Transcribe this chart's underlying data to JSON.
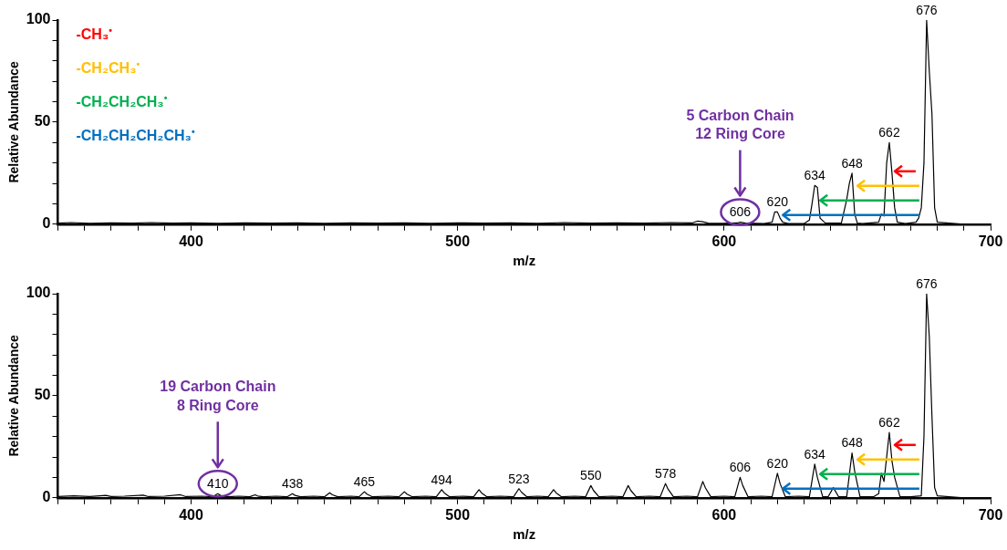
{
  "chart_data": [
    {
      "type": "line",
      "xlabel": "m/z",
      "ylabel": "Relative Abundance",
      "xlim": [
        350,
        700
      ],
      "ylim": [
        0,
        100
      ],
      "xticks": [
        {
          "value": 350,
          "label": null
        },
        {
          "value": 360,
          "label": null
        },
        {
          "value": 370,
          "label": null
        },
        {
          "value": 380,
          "label": null
        },
        {
          "value": 390,
          "label": null
        },
        400,
        {
          "value": 410,
          "label": null
        },
        {
          "value": 420,
          "label": null
        },
        {
          "value": 430,
          "label": null
        },
        {
          "value": 440,
          "label": null
        },
        {
          "value": 450,
          "label": null
        },
        {
          "value": 460,
          "label": null
        },
        {
          "value": 470,
          "label": null
        },
        {
          "value": 480,
          "label": null
        },
        {
          "value": 490,
          "label": null
        },
        500,
        {
          "value": 510,
          "label": null
        },
        {
          "value": 520,
          "label": null
        },
        {
          "value": 530,
          "label": null
        },
        {
          "value": 540,
          "label": null
        },
        {
          "value": 550,
          "label": null
        },
        {
          "value": 560,
          "label": null
        },
        {
          "value": 570,
          "label": null
        },
        {
          "value": 580,
          "label": null
        },
        {
          "value": 590,
          "label": null
        },
        600,
        {
          "value": 610,
          "label": null
        },
        {
          "value": 620,
          "label": null
        },
        {
          "value": 630,
          "label": null
        },
        {
          "value": 640,
          "label": null
        },
        {
          "value": 650,
          "label": null
        },
        {
          "value": 660,
          "label": null
        },
        {
          "value": 670,
          "label": null
        },
        {
          "value": 680,
          "label": null
        },
        {
          "value": 690,
          "label": null
        },
        700
      ],
      "yticks": [
        0,
        {
          "value": 10,
          "label": null
        },
        {
          "value": 20,
          "label": null
        },
        {
          "value": 30,
          "label": null
        },
        {
          "value": 40,
          "label": null
        },
        50,
        {
          "value": 60,
          "label": null
        },
        {
          "value": 70,
          "label": null
        },
        {
          "value": 80,
          "label": null
        },
        {
          "value": 90,
          "label": null
        },
        100
      ],
      "series": [
        {
          "color": "#000000",
          "x": [
            350,
            355,
            362,
            370,
            378,
            385,
            393,
            400,
            410,
            420,
            430,
            440,
            450,
            460,
            470,
            480,
            490,
            500,
            510,
            520,
            530,
            540,
            550,
            560,
            570,
            580,
            588,
            590,
            592,
            594,
            600,
            605,
            606,
            608,
            615,
            618,
            619,
            620,
            621,
            622,
            624,
            630,
            632,
            633,
            634,
            635,
            636,
            638,
            644,
            646,
            647,
            648,
            649,
            650,
            652,
            658,
            659,
            660,
            661,
            662,
            663,
            664,
            665,
            668,
            672,
            673,
            674,
            675,
            676,
            677,
            678,
            679,
            680,
            690,
            700
          ],
          "values": [
            0.5,
            0.8,
            0.4,
            0.7,
            0.5,
            0.8,
            0.5,
            0.6,
            0.4,
            0.7,
            0.5,
            0.6,
            0.4,
            0.7,
            0.5,
            0.6,
            0.4,
            0.7,
            0.5,
            0.6,
            0.4,
            0.8,
            0.5,
            0.7,
            0.5,
            0.8,
            0.6,
            1.5,
            1.2,
            0.5,
            0.4,
            0.6,
            1,
            0.5,
            0.3,
            1,
            6,
            6,
            3,
            1,
            0.3,
            0.3,
            2,
            10,
            19,
            18,
            3,
            0.5,
            0.5,
            12,
            20,
            25,
            5,
            0.5,
            0.3,
            1,
            5,
            4,
            30,
            40,
            25,
            8,
            1,
            0.3,
            1,
            3,
            8,
            30,
            100,
            75,
            54,
            8,
            1,
            0,
            0
          ]
        }
      ],
      "annotations": [
        "-CH₃$^{•}$",
        "-CH₂CH₃$^{•}$",
        "-CH₂CH₂CH₃$^{•}$",
        "-CH₂CH₂CH₂CH₃$^{•}$",
        {
          "text": "606",
          "x": 606,
          "y": 1
        },
        {
          "text": "620",
          "x": 620,
          "y": 6
        },
        {
          "text": "634",
          "x": 634,
          "y": 19
        },
        {
          "text": "648",
          "x": 648,
          "y": 25
        },
        {
          "text": "662",
          "x": 662,
          "y": 40
        },
        {
          "text": "676",
          "x": 676,
          "y": 100
        },
        "5 Carbon Chain\n12 Ring Core"
      ]
    },
    {
      "type": "line",
      "xlabel": "m/z",
      "ylabel": "Relative Abundance",
      "xlim": [
        350,
        700
      ],
      "ylim": [
        0,
        100
      ],
      "xticks": [
        {
          "value": 350,
          "label": null
        },
        {
          "value": 360,
          "label": null
        },
        {
          "value": 370,
          "label": null
        },
        {
          "value": 380,
          "label": null
        },
        {
          "value": 390,
          "label": null
        },
        400,
        {
          "value": 410,
          "label": null
        },
        {
          "value": 420,
          "label": null
        },
        {
          "value": 430,
          "label": null
        },
        {
          "value": 440,
          "label": null
        },
        {
          "value": 450,
          "label": null
        },
        {
          "value": 460,
          "label": null
        },
        {
          "value": 470,
          "label": null
        },
        {
          "value": 480,
          "label": null
        },
        {
          "value": 490,
          "label": null
        },
        500,
        {
          "value": 510,
          "label": null
        },
        {
          "value": 520,
          "label": null
        },
        {
          "value": 530,
          "label": null
        },
        {
          "value": 540,
          "label": null
        },
        {
          "value": 550,
          "label": null
        },
        {
          "value": 560,
          "label": null
        },
        {
          "value": 570,
          "label": null
        },
        {
          "value": 580,
          "label": null
        },
        {
          "value": 590,
          "label": null
        },
        600,
        {
          "value": 610,
          "label": null
        },
        {
          "value": 620,
          "label": null
        },
        {
          "value": 630,
          "label": null
        },
        {
          "value": 640,
          "label": null
        },
        {
          "value": 650,
          "label": null
        },
        {
          "value": 660,
          "label": null
        },
        {
          "value": 670,
          "label": null
        },
        {
          "value": 680,
          "label": null
        },
        {
          "value": 690,
          "label": null
        },
        700
      ],
      "yticks": [
        0,
        {
          "value": 10,
          "label": null
        },
        {
          "value": 20,
          "label": null
        },
        {
          "value": 30,
          "label": null
        },
        {
          "value": 40,
          "label": null
        },
        50,
        {
          "value": 60,
          "label": null
        },
        {
          "value": 70,
          "label": null
        },
        {
          "value": 80,
          "label": null
        },
        {
          "value": 90,
          "label": null
        },
        100
      ],
      "series": [
        {
          "color": "#000000",
          "x": [
            350,
            356,
            362,
            368,
            370,
            375,
            382,
            384,
            390,
            396,
            398,
            404,
            408,
            410,
            411,
            413,
            418,
            422,
            424,
            425,
            427,
            432,
            436,
            438,
            439,
            441,
            446,
            450,
            452,
            453,
            455,
            460,
            463,
            465,
            466,
            468,
            474,
            478,
            480,
            481,
            483,
            488,
            492,
            494,
            495,
            497,
            502,
            506,
            508,
            509,
            511,
            516,
            521,
            523,
            524,
            526,
            530,
            534,
            536,
            537,
            539,
            544,
            548,
            550,
            551,
            553,
            558,
            562,
            564,
            565,
            567,
            572,
            576,
            578,
            579,
            581,
            586,
            590,
            592,
            593,
            595,
            600,
            604,
            606,
            607,
            609,
            614,
            618,
            620,
            621,
            623,
            628,
            632,
            634,
            635,
            637,
            639,
            641,
            643,
            646,
            648,
            649,
            651,
            656,
            658,
            659,
            660,
            662,
            663,
            664,
            666,
            670,
            674,
            675,
            676,
            677,
            678,
            679,
            680,
            690,
            700
          ],
          "values": [
            0.6,
            1,
            0.6,
            1.2,
            0.6,
            0.8,
            1.3,
            0.6,
            0.8,
            1.5,
            0.6,
            0.8,
            0.5,
            2,
            1.2,
            0.5,
            0.8,
            0.5,
            1.5,
            0.9,
            0.5,
            0.8,
            0.5,
            2,
            1.2,
            0.5,
            0.8,
            0.5,
            2.5,
            1.5,
            0.5,
            0.8,
            0.5,
            3,
            1.8,
            0.5,
            0.8,
            0.5,
            3,
            1.8,
            0.5,
            0.8,
            0.5,
            4,
            2.4,
            0.5,
            0.8,
            0.5,
            4,
            2.4,
            0.5,
            0.8,
            0.5,
            4.5,
            2.7,
            0.5,
            0.8,
            0.5,
            4,
            2.4,
            0.5,
            0.8,
            0.5,
            6,
            3.6,
            0.5,
            0.8,
            0.5,
            6,
            3.6,
            0.5,
            0.8,
            0.5,
            7,
            4.2,
            0.5,
            0.8,
            0.5,
            8,
            4.8,
            0.5,
            0.8,
            0.5,
            10,
            6,
            0.5,
            0.8,
            0.5,
            12,
            7,
            0.5,
            0.8,
            0.5,
            16.5,
            10,
            0.5,
            0.5,
            5,
            0.5,
            0.5,
            22,
            13,
            0.5,
            0.5,
            2,
            12,
            8,
            32,
            18,
            10,
            0.5,
            0.5,
            1,
            30,
            100,
            79,
            40,
            5,
            1,
            0,
            0
          ]
        }
      ],
      "annotations": [
        {
          "text": "410",
          "x": 410,
          "y": 2
        },
        {
          "text": "438",
          "x": 438,
          "y": 2
        },
        {
          "text": "465",
          "x": 465,
          "y": 3
        },
        {
          "text": "494",
          "x": 494,
          "y": 4
        },
        {
          "text": "523",
          "x": 523,
          "y": 4.5
        },
        {
          "text": "550",
          "x": 550,
          "y": 6
        },
        {
          "text": "578",
          "x": 578,
          "y": 7
        },
        {
          "text": "606",
          "x": 606,
          "y": 10
        },
        {
          "text": "620",
          "x": 620,
          "y": 12
        },
        {
          "text": "634",
          "x": 634,
          "y": 16.5
        },
        {
          "text": "648",
          "x": 648,
          "y": 22
        },
        {
          "text": "662",
          "x": 662,
          "y": 32
        },
        {
          "text": "676",
          "x": 676,
          "y": 100
        },
        "19 Carbon Chain\n8 Ring Core"
      ]
    }
  ]
}
